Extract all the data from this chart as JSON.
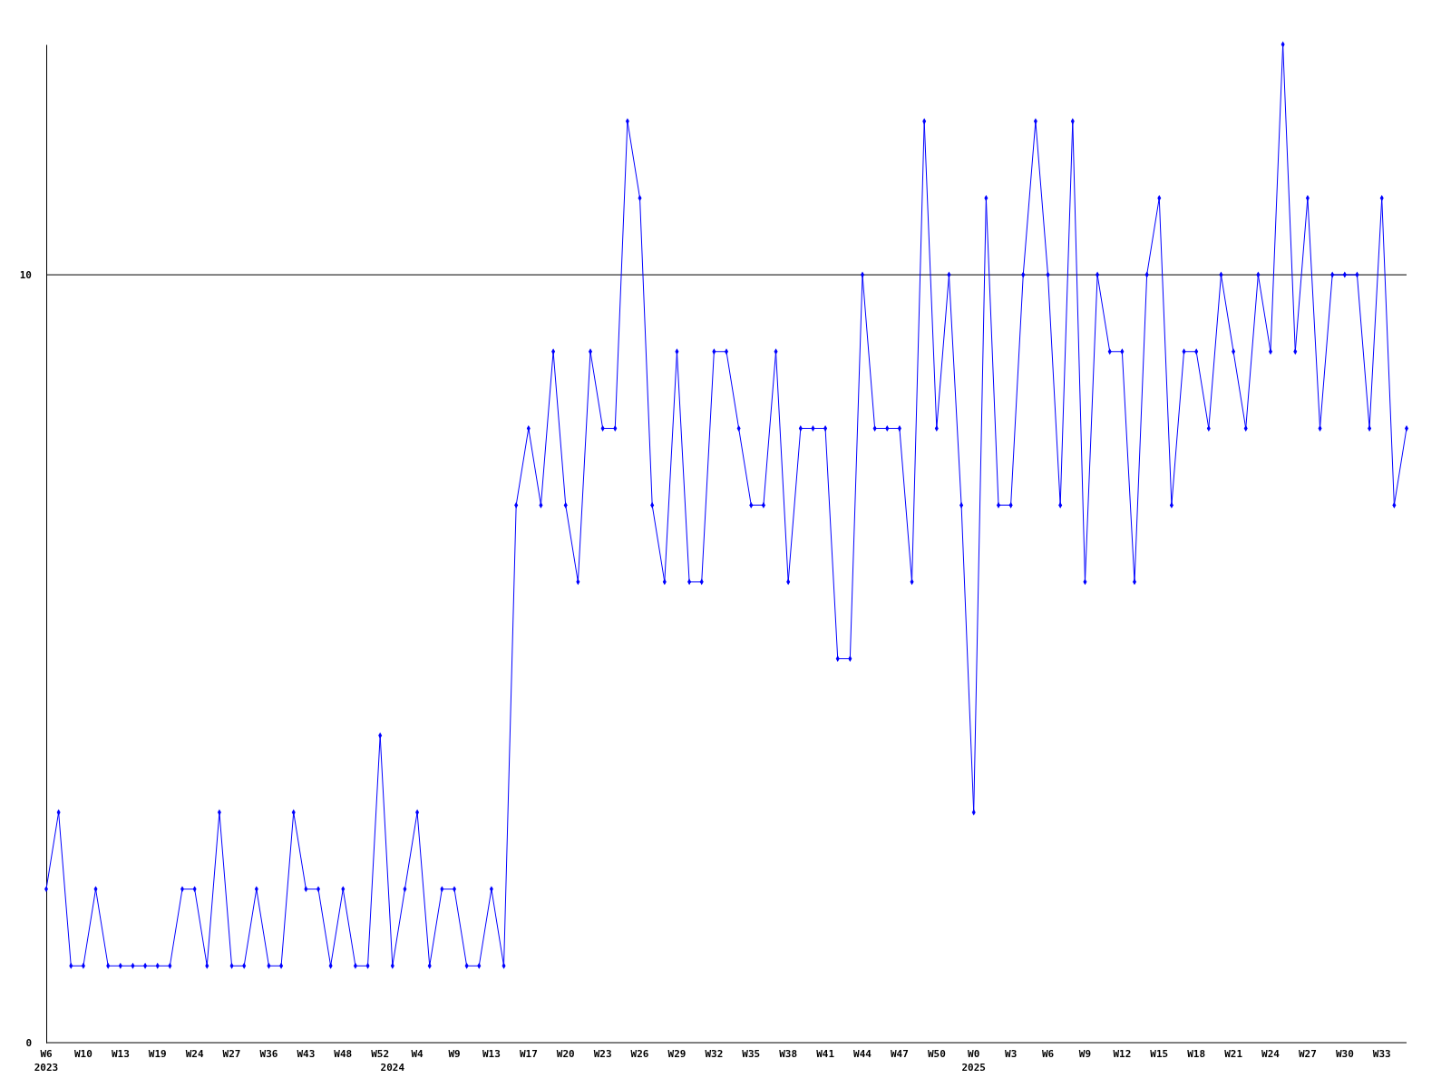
{
  "chart_data": {
    "type": "line",
    "categories": [
      "W6\n2023",
      null,
      null,
      "W10",
      null,
      null,
      "W13",
      null,
      null,
      "W19",
      null,
      null,
      "W24",
      null,
      null,
      "W27",
      null,
      null,
      "W36",
      null,
      null,
      "W43",
      null,
      null,
      "W48",
      null,
      null,
      "W52",
      "\n2024",
      null,
      "W4",
      null,
      null,
      "W9",
      null,
      null,
      "W13",
      null,
      null,
      "W17",
      null,
      null,
      "W20",
      null,
      null,
      "W23",
      null,
      null,
      "W26",
      null,
      null,
      "W29",
      null,
      null,
      "W32",
      null,
      null,
      "W35",
      null,
      null,
      "W38",
      null,
      null,
      "W41",
      null,
      null,
      "W44",
      null,
      null,
      "W47",
      null,
      null,
      "W50",
      null,
      null,
      "W0\n2025",
      null,
      null,
      "W3",
      null,
      null,
      "W6",
      null,
      null,
      "W9",
      null,
      null,
      "W12",
      null,
      null,
      "W15",
      null,
      null,
      "W18",
      null,
      null,
      "W21",
      null,
      null,
      "W24",
      null,
      null,
      "W27",
      null,
      null,
      "W30",
      null,
      null,
      "W33",
      null,
      null
    ],
    "series": [
      {
        "color": "#0000ff",
        "values": [
          2,
          3,
          1,
          1,
          2,
          1,
          1,
          1,
          1,
          1,
          1,
          2,
          2,
          1,
          3,
          1,
          1,
          2,
          1,
          1,
          3,
          2,
          2,
          1,
          2,
          1,
          1,
          4,
          1,
          2,
          3,
          1,
          2,
          2,
          1,
          1,
          2,
          1,
          7,
          8,
          7,
          9,
          7,
          6,
          9,
          8,
          8,
          12,
          11,
          7,
          6,
          9,
          6,
          6,
          9,
          9,
          8,
          7,
          7,
          9,
          6,
          8,
          8,
          8,
          5,
          5,
          10,
          8,
          8,
          8,
          6,
          12,
          8,
          10,
          7,
          3,
          11,
          7,
          7,
          10,
          12,
          10,
          7,
          12,
          6,
          10,
          9,
          9,
          6,
          10,
          11,
          7,
          9,
          9,
          8,
          10,
          9,
          8,
          10,
          9,
          13,
          9,
          11,
          8,
          10,
          10,
          10,
          8,
          11,
          7,
          8
        ]
      }
    ],
    "ylim": [
      0,
      13
    ],
    "yticks": [
      0,
      10
    ],
    "grid": "y",
    "marker": "diamond"
  }
}
